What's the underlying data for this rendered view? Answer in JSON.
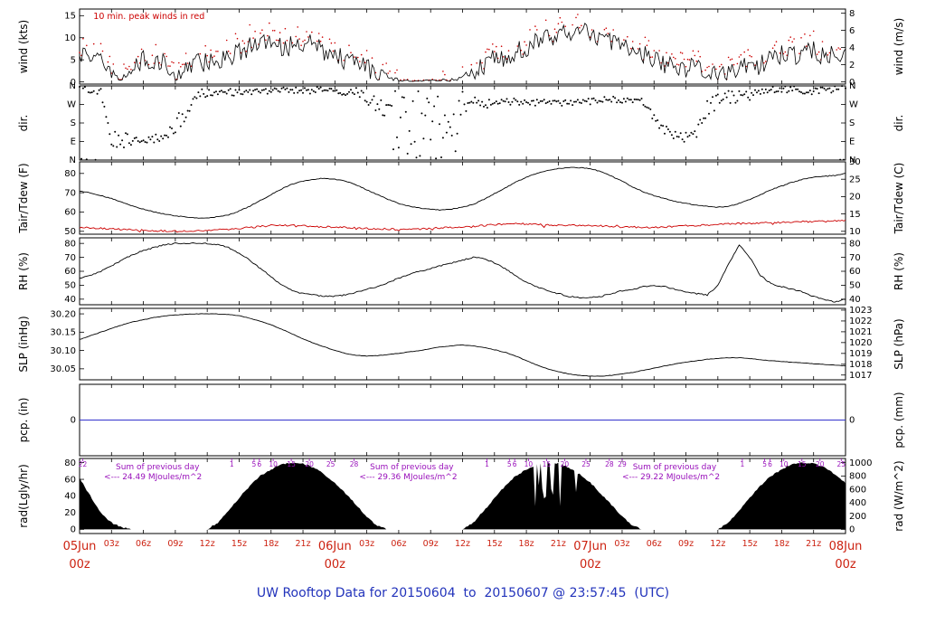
{
  "title": "UW Rooftop Data for 20150604  to  20150607 @ 23:57:45  (UTC)",
  "chart_data": {
    "type": "line",
    "title": "UW Rooftop Data for 20150604  to  20150607 @ 23:57:45  (UTC)",
    "x_hours_range": [
      0,
      72
    ],
    "wind_annotation": "10 min. peak winds in red",
    "colors": {
      "trace": "#000000",
      "dew": "#cc0000",
      "peak": "#cc0000",
      "xlabel": "#cc2211",
      "purple": "#9911bb",
      "title": "#2233bb",
      "pcp": "#3333cc"
    },
    "x_major_labels": [
      {
        "h": 0,
        "d": "05Jun",
        "z": "00z"
      },
      {
        "h": 24,
        "d": "06Jun",
        "z": "00z"
      },
      {
        "h": 48,
        "d": "07Jun",
        "z": "00z"
      },
      {
        "h": 72,
        "d": "08Jun",
        "z": "00z"
      }
    ],
    "x_minor_labels": [
      {
        "h": 3,
        "l": "03z"
      },
      {
        "h": 6,
        "l": "06z"
      },
      {
        "h": 9,
        "l": "09z"
      },
      {
        "h": 12,
        "l": "12z"
      },
      {
        "h": 15,
        "l": "15z"
      },
      {
        "h": 18,
        "l": "18z"
      },
      {
        "h": 21,
        "l": "21z"
      }
    ],
    "panels": [
      {
        "id": "wind",
        "left_label": "wind (kts)",
        "right_label": "wind (m/s)",
        "ylim": [
          -0.5,
          16.5
        ],
        "yticks_left": [
          {
            "v": 0,
            "l": "0"
          },
          {
            "v": 5,
            "l": "5"
          },
          {
            "v": 10,
            "l": "10"
          },
          {
            "v": 15,
            "l": "15"
          }
        ],
        "yticks_right": [
          {
            "v": 0,
            "l": "0"
          },
          {
            "v": 3.89,
            "l": "2"
          },
          {
            "v": 7.78,
            "l": "4"
          },
          {
            "v": 11.67,
            "l": "6"
          },
          {
            "v": 15.55,
            "l": "8"
          }
        ]
      },
      {
        "id": "dir",
        "left_label": "dir.",
        "right_label": "dir.",
        "ylim": [
          0,
          360
        ],
        "yticks_left": [
          {
            "v": 360,
            "l": "N"
          },
          {
            "v": 270,
            "l": "W"
          },
          {
            "v": 180,
            "l": "S"
          },
          {
            "v": 90,
            "l": "E"
          },
          {
            "v": 0,
            "l": "N"
          }
        ],
        "yticks_right": [
          {
            "v": 360,
            "l": "N"
          },
          {
            "v": 270,
            "l": "W"
          },
          {
            "v": 180,
            "l": "S"
          },
          {
            "v": 90,
            "l": "E"
          },
          {
            "v": 0,
            "l": "N"
          }
        ]
      },
      {
        "id": "tair",
        "left_label": "Tair/Tdew (F)",
        "right_label": "Tair/Tdew (C)",
        "ylim": [
          48.5,
          86
        ],
        "yticks_left": [
          {
            "v": 50,
            "l": "50"
          },
          {
            "v": 60,
            "l": "60"
          },
          {
            "v": 70,
            "l": "70"
          },
          {
            "v": 80,
            "l": "80"
          }
        ],
        "yticks_right": [
          {
            "v": 50,
            "l": "10"
          },
          {
            "v": 59,
            "l": "15"
          },
          {
            "v": 68,
            "l": "20"
          },
          {
            "v": 77,
            "l": "25"
          },
          {
            "v": 86,
            "l": "30"
          }
        ]
      },
      {
        "id": "rh",
        "left_label": "RH (%)",
        "right_label": "RH (%)",
        "ylim": [
          36,
          84
        ],
        "yticks_left": [
          {
            "v": 40,
            "l": "40"
          },
          {
            "v": 50,
            "l": "50"
          },
          {
            "v": 60,
            "l": "60"
          },
          {
            "v": 70,
            "l": "70"
          },
          {
            "v": 80,
            "l": "80"
          }
        ],
        "yticks_right": [
          {
            "v": 40,
            "l": "40"
          },
          {
            "v": 50,
            "l": "50"
          },
          {
            "v": 60,
            "l": "60"
          },
          {
            "v": 70,
            "l": "70"
          },
          {
            "v": 80,
            "l": "80"
          }
        ]
      },
      {
        "id": "slp",
        "left_label": "SLP (inHg)",
        "right_label": "SLP (hPa)",
        "ylim": [
          30.02,
          30.215
        ],
        "yticks_left": [
          {
            "v": 30.05,
            "l": "30.05"
          },
          {
            "v": 30.1,
            "l": "30.10"
          },
          {
            "v": 30.15,
            "l": "30.15"
          },
          {
            "v": 30.2,
            "l": "30.20"
          }
        ],
        "yticks_right": [
          {
            "v": 30.033,
            "l": "1017"
          },
          {
            "v": 30.0625,
            "l": "1018"
          },
          {
            "v": 30.092,
            "l": "1019"
          },
          {
            "v": 30.1216,
            "l": "1020"
          },
          {
            "v": 30.1511,
            "l": "1021"
          },
          {
            "v": 30.1806,
            "l": "1022"
          },
          {
            "v": 30.2102,
            "l": "1023"
          }
        ]
      },
      {
        "id": "pcp",
        "left_label": "pcp. (in)",
        "right_label": "pcp. (mm)",
        "ylim": [
          -1,
          1
        ],
        "yticks_left": [
          {
            "v": 0,
            "l": "0"
          }
        ],
        "yticks_right": [
          {
            "v": 0,
            "l": "0"
          }
        ]
      },
      {
        "id": "rad",
        "left_label": "rad(Lgly/hr)",
        "right_label": "rad (W/m^2)",
        "ylim": [
          -5,
          85
        ],
        "yticks_left": [
          {
            "v": 0,
            "l": "0"
          },
          {
            "v": 20,
            "l": "20"
          },
          {
            "v": 40,
            "l": "40"
          },
          {
            "v": 60,
            "l": "60"
          },
          {
            "v": 80,
            "l": "80"
          }
        ],
        "yticks_right": [
          {
            "v": 0,
            "l": "0"
          },
          {
            "v": 16,
            "l": "200"
          },
          {
            "v": 32,
            "l": "400"
          },
          {
            "v": 48,
            "l": "600"
          },
          {
            "v": 64,
            "l": "800"
          },
          {
            "v": 80,
            "l": "1000"
          }
        ]
      }
    ],
    "series_hourly": {
      "comment_units": "one value per hour, hour 0 = 05Jun 00z UTC through hour 72 = 08Jun 00z UTC",
      "wind_kts": [
        7,
        6,
        5,
        2,
        1,
        4,
        5,
        5,
        4,
        1,
        3,
        5,
        4,
        5,
        6,
        7,
        8,
        8,
        9,
        8,
        8,
        9,
        8,
        7,
        6,
        5,
        4,
        3,
        2,
        1,
        0.4,
        0.2,
        0.2,
        0.3,
        0.4,
        0.6,
        1,
        2,
        4,
        5,
        6,
        7,
        8,
        9,
        10,
        11,
        11,
        12,
        11,
        10,
        9,
        8,
        7,
        6,
        5,
        4,
        4,
        3,
        3,
        2,
        2,
        2,
        3,
        3,
        4,
        5,
        6,
        6,
        7,
        7,
        6,
        6,
        6,
        6,
        6
      ],
      "dir_deg": [
        350,
        345,
        340,
        110,
        100,
        95,
        100,
        105,
        110,
        180,
        200,
        320,
        330,
        335,
        330,
        325,
        330,
        335,
        340,
        345,
        340,
        335,
        340,
        345,
        340,
        335,
        330,
        300,
        270,
        240,
        180,
        150,
        120,
        200,
        260,
        280,
        285,
        280,
        275,
        280,
        285,
        280,
        275,
        280,
        285,
        280,
        275,
        280,
        285,
        290,
        295,
        290,
        285,
        280,
        200,
        150,
        120,
        110,
        130,
        250,
        290,
        300,
        310,
        320,
        330,
        335,
        340,
        345,
        340,
        335,
        340,
        345,
        350
      ],
      "tair_f": [
        71,
        70,
        68.5,
        67,
        65,
        63,
        61.5,
        60,
        59,
        58,
        57.5,
        57,
        57,
        57.5,
        58.5,
        60.5,
        63,
        66,
        69,
        72,
        74.5,
        76,
        77,
        77.5,
        77,
        76,
        74,
        71.5,
        69,
        66.5,
        64.5,
        63,
        62,
        61.5,
        61,
        61.5,
        62.5,
        64,
        66.5,
        69.5,
        72.5,
        75.5,
        78,
        80,
        81.5,
        82.5,
        83,
        83,
        82.5,
        81,
        78.5,
        76,
        73,
        70.5,
        68.5,
        67,
        65.5,
        64.5,
        63.5,
        63,
        62.5,
        63,
        64.5,
        66.5,
        69,
        71.5,
        73.5,
        75.5,
        77,
        78,
        78.5,
        79,
        80
      ],
      "tdew_f": [
        52,
        51.8,
        51.5,
        51.2,
        51,
        50.8,
        50.5,
        50.3,
        50.2,
        50,
        50,
        50.2,
        50.5,
        50.8,
        51,
        51.5,
        52,
        52.5,
        53,
        53.2,
        53,
        52.8,
        52.5,
        52.3,
        52.2,
        52,
        51.8,
        51.5,
        51.3,
        51.2,
        51,
        51,
        51.2,
        51.5,
        51.8,
        52,
        52.3,
        52.5,
        53,
        53.5,
        53.8,
        54,
        53.8,
        53.5,
        53.2,
        53,
        53,
        53.2,
        53,
        52.8,
        52.5,
        52.3,
        52.2,
        52,
        52,
        52.2,
        52.5,
        52.8,
        53,
        53.2,
        53.5,
        53.8,
        54,
        54.2,
        54.3,
        54.5,
        54.6,
        54.8,
        55,
        55,
        55.2,
        55.3,
        55.5
      ],
      "rh_pct": [
        55,
        57,
        60,
        64,
        68,
        72,
        75,
        77,
        79,
        80,
        80,
        80,
        80,
        79,
        77,
        73,
        68,
        62,
        56,
        50,
        46,
        44,
        43,
        42,
        42,
        43,
        45,
        47,
        49,
        52,
        55,
        58,
        60,
        62,
        64,
        66,
        68,
        70,
        69,
        66,
        62,
        57,
        52,
        49,
        46,
        44,
        42,
        41,
        41,
        42,
        44,
        46,
        47,
        49,
        50,
        49,
        47,
        45,
        44,
        43,
        50,
        65,
        79,
        70,
        57,
        51,
        49,
        47,
        45,
        42,
        40,
        38,
        40
      ],
      "slp_inhg": [
        30.13,
        30.14,
        30.15,
        30.16,
        30.17,
        30.178,
        30.184,
        30.19,
        30.194,
        30.197,
        30.199,
        30.2,
        30.2,
        30.2,
        30.198,
        30.195,
        30.188,
        30.18,
        30.17,
        30.158,
        30.145,
        30.132,
        30.12,
        30.11,
        30.1,
        30.092,
        30.087,
        30.085,
        30.086,
        30.089,
        30.092,
        30.096,
        30.1,
        30.105,
        30.11,
        30.113,
        30.115,
        30.113,
        30.108,
        30.102,
        30.095,
        30.085,
        30.072,
        30.06,
        30.05,
        30.042,
        30.036,
        30.032,
        30.03,
        30.03,
        30.032,
        30.036,
        30.04,
        30.046,
        30.052,
        30.058,
        30.063,
        30.068,
        30.072,
        30.076,
        30.078,
        30.08,
        30.08,
        30.078,
        30.075,
        30.072,
        30.07,
        30.068,
        30.066,
        30.064,
        30.062,
        30.06,
        30.058
      ],
      "pcp_in": 0,
      "rad_lgly": [
        62,
        40,
        20,
        8,
        2,
        0,
        0,
        0,
        0,
        0,
        0,
        0,
        0,
        8,
        22,
        38,
        52,
        64,
        72,
        78,
        80,
        79,
        74,
        66,
        56,
        43,
        29,
        15,
        4,
        0,
        0,
        0,
        0,
        0,
        0,
        0,
        0,
        8,
        22,
        38,
        52,
        64,
        72,
        78,
        80,
        79,
        74,
        66,
        56,
        43,
        29,
        15,
        4,
        0,
        0,
        0,
        0,
        0,
        0,
        0,
        0,
        8,
        22,
        38,
        52,
        64,
        72,
        78,
        80,
        79,
        74,
        66,
        56
      ]
    },
    "rad_annotations": [
      {
        "t_sum": 3.4,
        "t_val": 2.3,
        "label": "Sum of previous day",
        "value": "<--- 24.49 MJoules/m^2"
      },
      {
        "t_sum": 27.3,
        "t_val": 26.3,
        "label": "Sum of previous day",
        "value": "<--- 29.36 MJoules/m^2"
      },
      {
        "t_sum": 52.0,
        "t_val": 51.0,
        "label": "Sum of previous day",
        "value": "<--- 29.22 MJoules/m^2"
      }
    ],
    "rad_progress_ticks": [
      {
        "t": 0.3,
        "l": "22"
      },
      {
        "t": 14.3,
        "l": "1"
      },
      {
        "t": 16.4,
        "l": "5"
      },
      {
        "t": 16.9,
        "l": "6"
      },
      {
        "t": 18.2,
        "l": "10"
      },
      {
        "t": 19.9,
        "l": "15"
      },
      {
        "t": 21.6,
        "l": "20"
      },
      {
        "t": 23.6,
        "l": "25"
      },
      {
        "t": 25.8,
        "l": "28"
      },
      {
        "t": 38.3,
        "l": "1"
      },
      {
        "t": 40.4,
        "l": "5"
      },
      {
        "t": 40.9,
        "l": "6"
      },
      {
        "t": 42.2,
        "l": "10"
      },
      {
        "t": 43.9,
        "l": "15"
      },
      {
        "t": 45.6,
        "l": "20"
      },
      {
        "t": 47.6,
        "l": "25"
      },
      {
        "t": 49.8,
        "l": "28"
      },
      {
        "t": 51.0,
        "l": "29"
      },
      {
        "t": 62.3,
        "l": "1"
      },
      {
        "t": 64.4,
        "l": "5"
      },
      {
        "t": 64.9,
        "l": "6"
      },
      {
        "t": 66.2,
        "l": "10"
      },
      {
        "t": 67.9,
        "l": "15"
      },
      {
        "t": 69.6,
        "l": "20"
      },
      {
        "t": 71.6,
        "l": "25"
      }
    ]
  }
}
